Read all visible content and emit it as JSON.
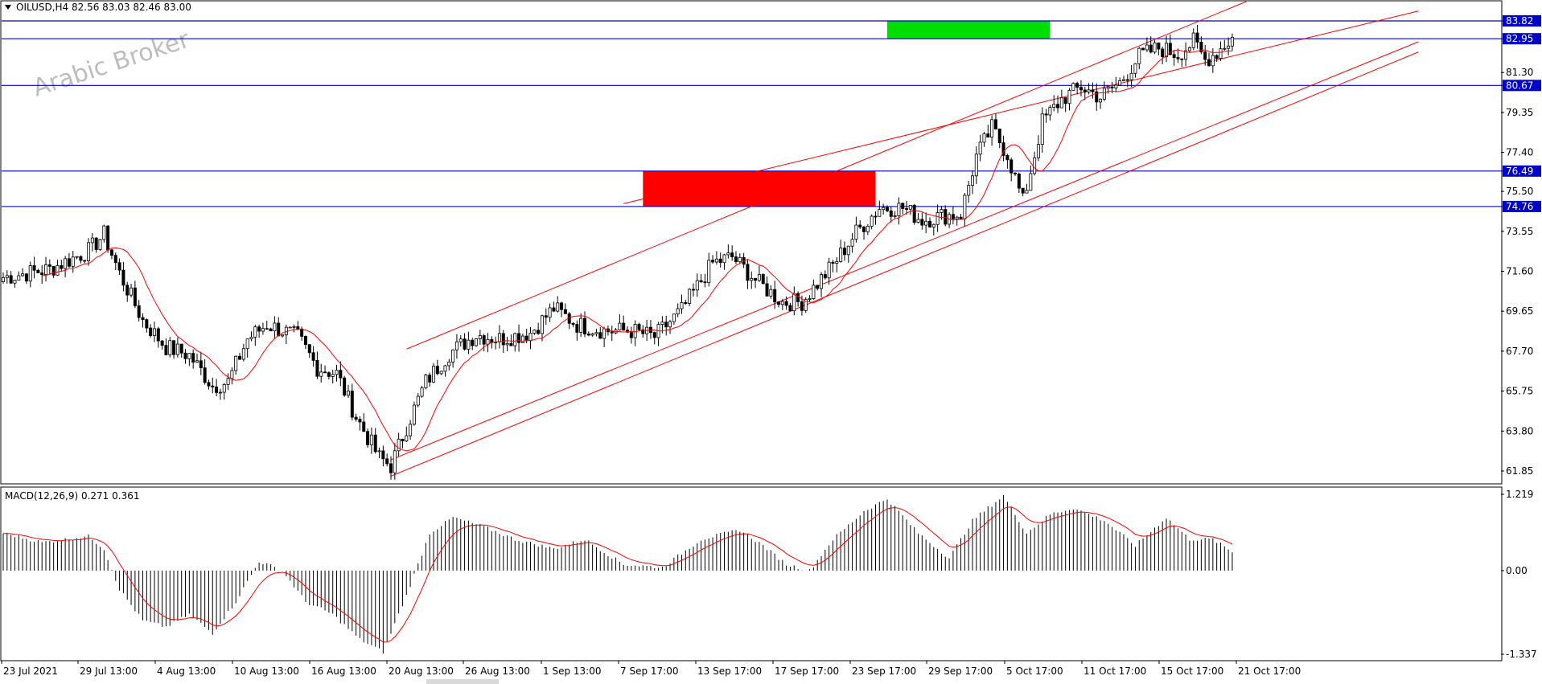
{
  "header": {
    "symbol_line": "OILUSD,H4  82.56 83.03 82.46 83.00",
    "macd_line": "MACD(12,26,9) 0.271 0.361",
    "watermark": "Arabic Broker"
  },
  "colors": {
    "bull": "#000000",
    "ma": "#ff0000",
    "channel": "#ff0000",
    "levels": "#0000cc",
    "tag_bg": "#0000cc",
    "supply_zone": "#00dd00",
    "demand_zone": "#ff0000",
    "macd_hist": "#000000",
    "macd_signal": "#ff0000"
  },
  "chart_data": [
    {
      "type": "candlestick",
      "title": "OILUSD,H4",
      "ylim": [
        60.9,
        84.9
      ],
      "y_ticks": [
        {
          "v": 83.82,
          "label": "83.82",
          "tag": true
        },
        {
          "v": 82.95,
          "label": "82.95",
          "tag": true
        },
        {
          "v": 81.3,
          "label": "81.30"
        },
        {
          "v": 80.67,
          "label": "80.67",
          "tag": true
        },
        {
          "v": 79.35,
          "label": "79.35"
        },
        {
          "v": 77.4,
          "label": "77.40"
        },
        {
          "v": 76.49,
          "label": "76.49",
          "tag": true
        },
        {
          "v": 75.5,
          "label": "75.50"
        },
        {
          "v": 74.76,
          "label": "74.76",
          "tag": true
        },
        {
          "v": 73.55,
          "label": "73.55"
        },
        {
          "v": 71.6,
          "label": "71.60"
        },
        {
          "v": 69.65,
          "label": "69.65"
        },
        {
          "v": 67.7,
          "label": "67.70"
        },
        {
          "v": 65.75,
          "label": "65.75"
        },
        {
          "v": 63.8,
          "label": "63.80"
        },
        {
          "v": 61.85,
          "label": "61.85"
        }
      ],
      "x_labels": [
        "23 Jul 2021",
        "29 Jul 13:00",
        "4 Aug 13:00",
        "10 Aug 13:00",
        "16 Aug 13:00",
        "20 Aug 13:00",
        "26 Aug 13:00",
        "1 Sep 13:00",
        "7 Sep 17:00",
        "13 Sep 17:00",
        "17 Sep 17:00",
        "23 Sep 17:00",
        "29 Sep 17:00",
        "5 Oct 17:00",
        "11 Oct 17:00",
        "15 Oct 17:00",
        "21 Oct 17:00"
      ],
      "bar_count": 318,
      "anchors": [
        [
          0,
          71.3
        ],
        [
          12,
          71.7
        ],
        [
          22,
          72.6
        ],
        [
          26,
          73.4
        ],
        [
          30,
          71.5
        ],
        [
          36,
          69.2
        ],
        [
          42,
          67.9
        ],
        [
          48,
          67.5
        ],
        [
          54,
          66.0
        ],
        [
          58,
          66.2
        ],
        [
          63,
          68.3
        ],
        [
          68,
          69.0
        ],
        [
          76,
          68.4
        ],
        [
          81,
          66.9
        ],
        [
          86,
          66.6
        ],
        [
          91,
          64.5
        ],
        [
          97,
          62.5
        ],
        [
          100,
          62.1
        ],
        [
          104,
          64.0
        ],
        [
          109,
          66.2
        ],
        [
          115,
          67.6
        ],
        [
          122,
          68.5
        ],
        [
          128,
          68.3
        ],
        [
          136,
          68.6
        ],
        [
          142,
          69.8
        ],
        [
          148,
          69.0
        ],
        [
          155,
          68.7
        ],
        [
          162,
          68.7
        ],
        [
          168,
          68.4
        ],
        [
          175,
          69.7
        ],
        [
          183,
          72.0
        ],
        [
          188,
          72.3
        ],
        [
          195,
          71.0
        ],
        [
          201,
          70.1
        ],
        [
          206,
          70.1
        ],
        [
          214,
          71.9
        ],
        [
          220,
          73.5
        ],
        [
          226,
          74.7
        ],
        [
          232,
          74.7
        ],
        [
          237,
          74.1
        ],
        [
          242,
          74.3
        ],
        [
          247,
          74.4
        ],
        [
          251,
          77.2
        ],
        [
          255,
          78.6
        ],
        [
          259,
          77.3
        ],
        [
          263,
          75.0
        ],
        [
          265,
          76.5
        ],
        [
          268,
          78.9
        ],
        [
          273,
          80.0
        ],
        [
          278,
          80.6
        ],
        [
          283,
          80.1
        ],
        [
          288,
          80.8
        ],
        [
          293,
          82.1
        ],
        [
          298,
          82.5
        ],
        [
          303,
          82.2
        ],
        [
          307,
          82.8
        ],
        [
          310,
          81.9
        ],
        [
          313,
          82.3
        ],
        [
          317,
          83.0
        ]
      ],
      "channel_lines": [
        {
          "from": [
            "25 Aug",
            67.8
          ],
          "to": [
            "25 Oct",
            85.5
          ]
        },
        {
          "from": [
            "20 Aug",
            62.4
          ],
          "to": [
            "31 Oct",
            82.8
          ]
        },
        {
          "from": [
            "20 Aug",
            61.6
          ],
          "to": [
            "31 Oct",
            82.3
          ]
        },
        {
          "from": [
            "17 Sep",
            74.9
          ],
          "to": [
            "31 Oct",
            84.3
          ]
        }
      ],
      "horizontal_levels": [
        83.82,
        82.95,
        80.67,
        76.49,
        74.76
      ],
      "zones": [
        {
          "name": "supply",
          "from_bar": 228,
          "to_bar": 270,
          "low": 82.95,
          "high": 83.82
        },
        {
          "name": "demand",
          "from_bar": 165,
          "to_bar": 225,
          "low": 74.76,
          "high": 76.49
        }
      ]
    },
    {
      "type": "histogram",
      "title": "MACD(12,26,9)",
      "ylim": [
        -1.4,
        1.3
      ],
      "y_ticks": [
        {
          "v": 1.219,
          "label": "1.219"
        },
        {
          "v": 0.0,
          "label": "0.00"
        },
        {
          "v": -1.337,
          "label": "-1.337"
        }
      ],
      "anchors": [
        [
          0,
          0.6
        ],
        [
          10,
          0.45
        ],
        [
          22,
          0.55
        ],
        [
          26,
          0.35
        ],
        [
          30,
          -0.3
        ],
        [
          36,
          -0.8
        ],
        [
          42,
          -0.9
        ],
        [
          48,
          -0.7
        ],
        [
          54,
          -1.0
        ],
        [
          60,
          -0.5
        ],
        [
          66,
          0.15
        ],
        [
          72,
          0.0
        ],
        [
          78,
          -0.5
        ],
        [
          85,
          -0.7
        ],
        [
          92,
          -1.1
        ],
        [
          98,
          -1.3
        ],
        [
          104,
          -0.4
        ],
        [
          110,
          0.6
        ],
        [
          116,
          0.85
        ],
        [
          124,
          0.7
        ],
        [
          132,
          0.5
        ],
        [
          142,
          0.35
        ],
        [
          150,
          0.5
        ],
        [
          160,
          0.1
        ],
        [
          170,
          0.05
        ],
        [
          180,
          0.5
        ],
        [
          190,
          0.65
        ],
        [
          196,
          0.4
        ],
        [
          202,
          0.1
        ],
        [
          208,
          0.0
        ],
        [
          214,
          0.5
        ],
        [
          222,
          0.95
        ],
        [
          228,
          1.15
        ],
        [
          236,
          0.6
        ],
        [
          244,
          0.2
        ],
        [
          250,
          0.8
        ],
        [
          258,
          1.2
        ],
        [
          264,
          0.6
        ],
        [
          270,
          0.9
        ],
        [
          276,
          1.0
        ],
        [
          284,
          0.8
        ],
        [
          292,
          0.4
        ],
        [
          300,
          0.85
        ],
        [
          306,
          0.5
        ],
        [
          312,
          0.5
        ],
        [
          317,
          0.3
        ]
      ]
    }
  ]
}
